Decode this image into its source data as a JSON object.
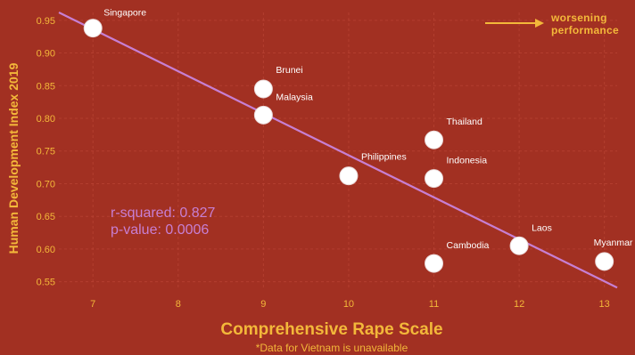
{
  "chart_data": {
    "type": "scatter",
    "xlabel": "Comprehensive Rape Scale",
    "ylabel": "Human Development Index 2019",
    "xlim": [
      6.6,
      13.15
    ],
    "ylim": [
      0.54,
      0.962
    ],
    "x_ticks": [
      7,
      8,
      9,
      10,
      11,
      12,
      13
    ],
    "y_ticks": [
      0.55,
      0.6,
      0.65,
      0.7,
      0.75,
      0.8,
      0.85,
      0.9,
      0.95
    ],
    "grid": true,
    "points": [
      {
        "label": "Singapore",
        "x": 7,
        "y": 0.938
      },
      {
        "label": "Brunei",
        "x": 9,
        "y": 0.845
      },
      {
        "label": "Malaysia",
        "x": 9,
        "y": 0.805
      },
      {
        "label": "Philippines",
        "x": 10,
        "y": 0.712
      },
      {
        "label": "Thailand",
        "x": 11,
        "y": 0.767
      },
      {
        "label": "Indonesia",
        "x": 11,
        "y": 0.708
      },
      {
        "label": "Cambodia",
        "x": 11,
        "y": 0.578
      },
      {
        "label": "Laos",
        "x": 12,
        "y": 0.605
      },
      {
        "label": "Myanmar",
        "x": 13,
        "y": 0.581
      }
    ],
    "trend_line": {
      "x": [
        6.6,
        13.15
      ],
      "y": [
        0.962,
        0.541
      ]
    },
    "stats": {
      "r_squared": "r-squared: 0.827",
      "p_value": "p-value: 0.0006"
    },
    "annotation": {
      "line1": "worsening",
      "line2": "performance"
    },
    "footnote": "*Data for Vietnam is unavailable",
    "colors": {
      "background": "#a23022",
      "accent": "#f3b83a",
      "trend": "#c77fd3",
      "point": "#ffffff"
    }
  }
}
